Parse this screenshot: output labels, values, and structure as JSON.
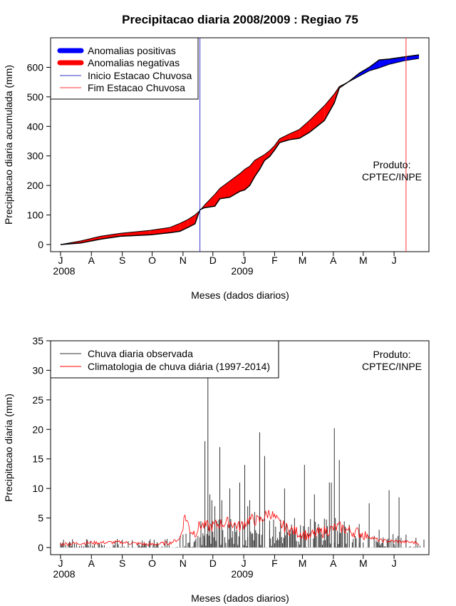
{
  "title": "Precipitacao diaria 2008/2009 : Regiao 75",
  "colors": {
    "positive": "#0000ff",
    "negative": "#ff0000",
    "onset": "#3333cc",
    "end": "#ff3333",
    "observed": "#333333",
    "climatology": "#ff0000"
  },
  "product_label": [
    "Produto:",
    "CPTEC/INPE"
  ],
  "months": [
    "J",
    "A",
    "S",
    "O",
    "N",
    "D",
    "J",
    "F",
    "M",
    "A",
    "M",
    "J"
  ],
  "years": [
    "2008",
    "2009"
  ],
  "chart_data": [
    {
      "type": "area",
      "title": "Precipitacao diaria 2008/2009 : Regiao 75",
      "xlabel": "Meses (dados diarios)",
      "ylabel": "Precipitacao diaria acumulada (mm)",
      "ylim": [
        0,
        700
      ],
      "yticks": [
        0,
        100,
        200,
        300,
        400,
        500,
        600
      ],
      "x_unit": "day index since 1 Jul 2008",
      "xlim": [
        -10,
        370
      ],
      "month_ticks_day": [
        0,
        31,
        62,
        92,
        123,
        153,
        184,
        215,
        243,
        274,
        304,
        335
      ],
      "legend": [
        "Anomalias positivas",
        "Anomalias negativas",
        "Inicio Estacao Chuvosa",
        "Fim Estacao Chuvosa"
      ],
      "onset_day": 140,
      "end_day": 347,
      "observed_cumulative": {
        "x": [
          0,
          20,
          40,
          60,
          90,
          110,
          120,
          128,
          135,
          140,
          145,
          155,
          160,
          170,
          180,
          185,
          190,
          195,
          200,
          205,
          210,
          215,
          220,
          230,
          240,
          250,
          265,
          275,
          280,
          290,
          300,
          310,
          320,
          330,
          345,
          360
        ],
        "y": [
          0,
          5,
          18,
          28,
          33,
          40,
          45,
          58,
          70,
          118,
          125,
          130,
          155,
          160,
          180,
          185,
          200,
          230,
          255,
          285,
          298,
          320,
          345,
          355,
          360,
          380,
          420,
          480,
          530,
          553,
          580,
          600,
          625,
          628,
          635,
          642
        ]
      },
      "climatology_cumulative": {
        "x": [
          0,
          20,
          40,
          60,
          90,
          110,
          120,
          128,
          135,
          140,
          145,
          155,
          160,
          170,
          180,
          185,
          190,
          195,
          200,
          205,
          210,
          215,
          220,
          230,
          240,
          250,
          265,
          275,
          280,
          290,
          300,
          310,
          320,
          330,
          345,
          360
        ],
        "y": [
          0,
          12,
          28,
          38,
          48,
          58,
          72,
          85,
          100,
          115,
          135,
          170,
          190,
          215,
          240,
          255,
          265,
          285,
          295,
          305,
          318,
          335,
          358,
          375,
          390,
          420,
          470,
          510,
          535,
          552,
          570,
          588,
          598,
          610,
          622,
          630
        ]
      }
    },
    {
      "type": "bar",
      "xlabel": "Meses (dados diarios)",
      "ylabel": "Precipitacao diaria (mm)",
      "ylim": [
        0,
        35
      ],
      "yticks": [
        0,
        5,
        10,
        15,
        20,
        25,
        30,
        35
      ],
      "xlim": [
        -10,
        370
      ],
      "legend": [
        "Chuva diaria observada",
        "Climatologia de chuva diária (1997-2014)"
      ],
      "observed_peaks": {
        "x": [
          145,
          148,
          150,
          152,
          155,
          160,
          162,
          170,
          180,
          185,
          188,
          190,
          195,
          200,
          205,
          210,
          225,
          230,
          235,
          245,
          255,
          270,
          272,
          275,
          280,
          290,
          300,
          310,
          320,
          330,
          340
        ],
        "y": [
          18,
          30,
          9,
          8,
          7,
          17,
          8,
          10,
          11,
          14,
          7,
          8,
          6,
          19.5,
          15.5,
          3,
          10,
          3,
          5,
          14,
          9,
          11,
          11,
          20.2,
          14.8,
          3.5,
          4,
          7.5,
          3,
          9.7,
          8.5
        ]
      },
      "climatology": {
        "x": [
          0,
          30,
          60,
          90,
          110,
          120,
          125,
          130,
          135,
          140,
          150,
          160,
          170,
          180,
          190,
          200,
          210,
          220,
          230,
          240,
          250,
          260,
          270,
          280,
          290,
          300,
          320,
          340,
          360
        ],
        "y": [
          0.6,
          0.8,
          0.9,
          0.5,
          0.8,
          1.5,
          5.5,
          3.0,
          2.5,
          3.8,
          3.5,
          4.0,
          4.3,
          3.5,
          4.8,
          4.5,
          6.0,
          4.0,
          3.0,
          2.5,
          2.0,
          2.5,
          3.0,
          3.5,
          2.8,
          2.5,
          1.2,
          1.0,
          0.8
        ]
      }
    }
  ]
}
